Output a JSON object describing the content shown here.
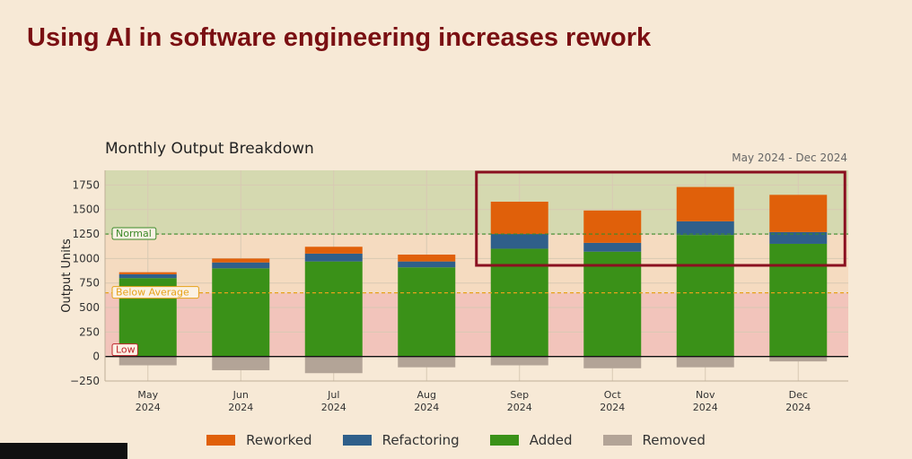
{
  "slide_title": "Using AI in software engineering increases rework",
  "chart_data": {
    "type": "bar",
    "stacked": true,
    "title": "Monthly Output Breakdown",
    "subtitle": "May 2024 - Dec 2024",
    "ylabel": "Output Units",
    "xlabel": "",
    "ylim": [
      -250,
      1900
    ],
    "yticks": [
      -250,
      0,
      250,
      500,
      750,
      1000,
      1250,
      1500,
      1750
    ],
    "categories": [
      "May\n2024",
      "Jun\n2024",
      "Jul\n2024",
      "Aug\n2024",
      "Sep\n2024",
      "Oct\n2024",
      "Nov\n2024",
      "Dec\n2024"
    ],
    "series": [
      {
        "name": "Added",
        "color": "#3a9118",
        "values": [
          800,
          900,
          970,
          910,
          1100,
          1070,
          1240,
          1150
        ]
      },
      {
        "name": "Refactoring",
        "color": "#2f5f8a",
        "values": [
          40,
          60,
          80,
          60,
          150,
          90,
          140,
          120
        ]
      },
      {
        "name": "Reworked",
        "color": "#e0600a",
        "values": [
          20,
          40,
          70,
          70,
          330,
          330,
          350,
          380
        ]
      },
      {
        "name": "Removed",
        "color": "#b3a497",
        "values": [
          -90,
          -140,
          -170,
          -110,
          -90,
          -120,
          -110,
          -50
        ]
      }
    ],
    "thresholds": [
      {
        "label": "Normal",
        "value": 1250,
        "color": "#3b8a2a"
      },
      {
        "label": "Below Average",
        "value": 650,
        "color": "#e6a21a"
      },
      {
        "label": "Low",
        "value": 0,
        "color": "#c0262d"
      }
    ],
    "zone_colors": {
      "normal": "#d5d9b0",
      "below_average": "#f5dbc0",
      "low": "#f2c4bb"
    },
    "highlight_color": "#8a1020",
    "highlight_categories": [
      "Sep\n2024",
      "Oct\n2024",
      "Nov\n2024",
      "Dec\n2024"
    ],
    "legend": [
      "Reworked",
      "Refactoring",
      "Added",
      "Removed"
    ],
    "legend_position": "bottom",
    "grid": true
  }
}
